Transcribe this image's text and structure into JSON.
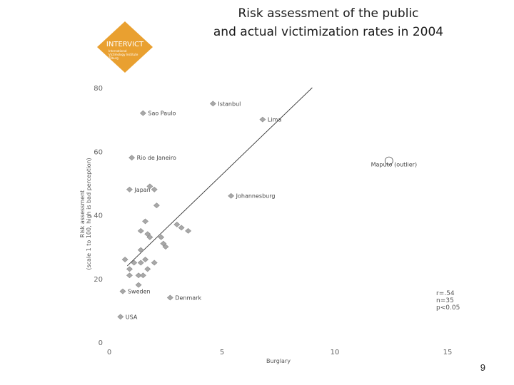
{
  "title": {
    "line1": "Risk assessment of the public",
    "line2": "and actual victimization rates in 2004"
  },
  "logo": {
    "text": "INTERVICT",
    "subtitle1": "International",
    "subtitle2": "Victimology Institute",
    "subtitle3": "Tilburg",
    "color": "#e9a030"
  },
  "page_number": "9",
  "chart_data": {
    "type": "scatter",
    "xlabel": "Burglary",
    "ylabel_line1": "Risk assessment",
    "ylabel_line2": "(scale 1 to 100, high is bad perception)",
    "xlim": [
      0,
      15
    ],
    "ylim": [
      0,
      80
    ],
    "x_ticks": [
      "0",
      "5",
      "10",
      "15"
    ],
    "y_ticks": [
      "0",
      "20",
      "40",
      "60",
      "80"
    ],
    "point_color": "#a8a8a8",
    "points": [
      {
        "x": 4.6,
        "y": 75,
        "label": "Istanbul"
      },
      {
        "x": 1.5,
        "y": 72,
        "label": "Sao Paulo"
      },
      {
        "x": 6.8,
        "y": 70,
        "label": "Lima"
      },
      {
        "x": 1.0,
        "y": 58,
        "label": "Rio de Janeiro"
      },
      {
        "x": 0.9,
        "y": 48,
        "label": "Japan"
      },
      {
        "x": 5.4,
        "y": 46,
        "label": "Johannesburg"
      },
      {
        "x": 0.6,
        "y": 16,
        "label": "Sweden"
      },
      {
        "x": 2.7,
        "y": 14,
        "label": "Denmark"
      },
      {
        "x": 0.5,
        "y": 8,
        "label": "USA"
      },
      {
        "x": 1.8,
        "y": 49,
        "label": ""
      },
      {
        "x": 2.0,
        "y": 48,
        "label": ""
      },
      {
        "x": 2.1,
        "y": 43,
        "label": ""
      },
      {
        "x": 1.6,
        "y": 38,
        "label": ""
      },
      {
        "x": 1.4,
        "y": 35,
        "label": ""
      },
      {
        "x": 1.7,
        "y": 34,
        "label": ""
      },
      {
        "x": 1.8,
        "y": 33,
        "label": ""
      },
      {
        "x": 2.3,
        "y": 33,
        "label": ""
      },
      {
        "x": 2.5,
        "y": 30,
        "label": ""
      },
      {
        "x": 2.4,
        "y": 31,
        "label": ""
      },
      {
        "x": 3.0,
        "y": 37,
        "label": ""
      },
      {
        "x": 3.2,
        "y": 36,
        "label": ""
      },
      {
        "x": 3.5,
        "y": 35,
        "label": ""
      },
      {
        "x": 1.4,
        "y": 29,
        "label": ""
      },
      {
        "x": 0.7,
        "y": 26,
        "label": ""
      },
      {
        "x": 1.1,
        "y": 25,
        "label": ""
      },
      {
        "x": 1.4,
        "y": 25,
        "label": ""
      },
      {
        "x": 1.6,
        "y": 26,
        "label": ""
      },
      {
        "x": 2.0,
        "y": 25,
        "label": ""
      },
      {
        "x": 0.9,
        "y": 23,
        "label": ""
      },
      {
        "x": 1.7,
        "y": 23,
        "label": ""
      },
      {
        "x": 0.9,
        "y": 21,
        "label": ""
      },
      {
        "x": 1.3,
        "y": 21,
        "label": ""
      },
      {
        "x": 1.5,
        "y": 21,
        "label": ""
      },
      {
        "x": 1.3,
        "y": 18,
        "label": ""
      }
    ],
    "outlier": {
      "x": 12.4,
      "y": 57,
      "label": "Maputo (outlier)"
    },
    "regression": {
      "x0": 0.8,
      "y0": 24,
      "x1": 9.0,
      "y1": 80
    },
    "stats": {
      "r": "r=.54",
      "n": "n=35",
      "p": "p<0.05"
    },
    "grid": false,
    "legend": "none"
  }
}
